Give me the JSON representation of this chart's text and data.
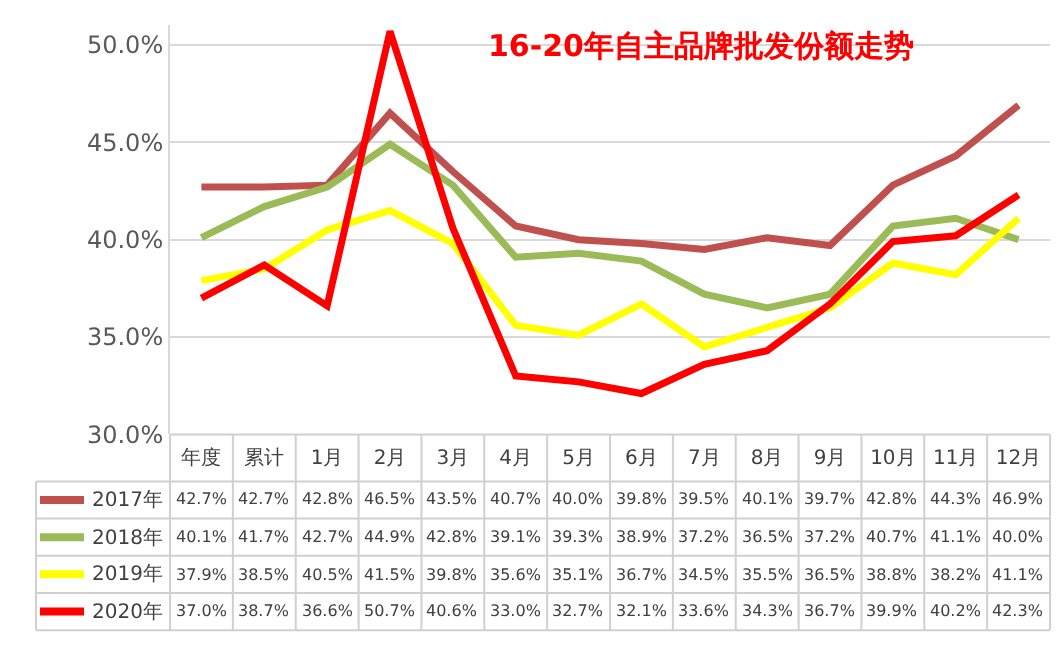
{
  "chart_data": {
    "type": "line",
    "title": "16-20年自主品牌批发份额走势",
    "categories": [
      "年度",
      "累计",
      "1月",
      "2月",
      "3月",
      "4月",
      "5月",
      "6月",
      "7月",
      "8月",
      "9月",
      "10月",
      "11月",
      "12月"
    ],
    "series": [
      {
        "name": "2017年",
        "color": "#c0504d",
        "values": [
          42.7,
          42.7,
          42.8,
          46.5,
          43.5,
          40.7,
          40.0,
          39.8,
          39.5,
          40.1,
          39.7,
          42.8,
          44.3,
          46.9
        ],
        "value_labels": [
          "42.7%",
          "42.7%",
          "42.8%",
          "46.5%",
          "43.5%",
          "40.7%",
          "40.0%",
          "39.8%",
          "39.5%",
          "40.1%",
          "39.7%",
          "42.8%",
          "44.3%",
          "46.9%"
        ]
      },
      {
        "name": "2018年",
        "color": "#9bbb59",
        "values": [
          40.1,
          41.7,
          42.7,
          44.9,
          42.8,
          39.1,
          39.3,
          38.9,
          37.2,
          36.5,
          37.2,
          40.7,
          41.1,
          40.0
        ],
        "value_labels": [
          "40.1%",
          "41.7%",
          "42.7%",
          "44.9%",
          "42.8%",
          "39.1%",
          "39.3%",
          "38.9%",
          "37.2%",
          "36.5%",
          "37.2%",
          "40.7%",
          "41.1%",
          "40.0%"
        ]
      },
      {
        "name": "2019年",
        "color": "#ffff00",
        "values": [
          37.9,
          38.5,
          40.5,
          41.5,
          39.8,
          35.6,
          35.1,
          36.7,
          34.5,
          35.5,
          36.5,
          38.8,
          38.2,
          41.1
        ],
        "value_labels": [
          "37.9%",
          "38.5%",
          "40.5%",
          "41.5%",
          "39.8%",
          "35.6%",
          "35.1%",
          "36.7%",
          "34.5%",
          "35.5%",
          "36.5%",
          "38.8%",
          "38.2%",
          "41.1%"
        ]
      },
      {
        "name": "2020年",
        "color": "#ff0000",
        "values": [
          37.0,
          38.7,
          36.6,
          50.7,
          40.6,
          33.0,
          32.7,
          32.1,
          33.6,
          34.3,
          36.7,
          39.9,
          40.2,
          42.3
        ],
        "value_labels": [
          "37.0%",
          "38.7%",
          "36.6%",
          "50.7%",
          "40.6%",
          "33.0%",
          "32.7%",
          "32.1%",
          "33.6%",
          "34.3%",
          "36.7%",
          "39.9%",
          "40.2%",
          "42.3%"
        ]
      }
    ],
    "ylim": [
      30,
      51
    ],
    "yticks": [
      {
        "value": 30,
        "label": "30.0%"
      },
      {
        "value": 35,
        "label": "35.0%"
      },
      {
        "value": 40,
        "label": "40.0%"
      },
      {
        "value": 45,
        "label": "45.0%"
      },
      {
        "value": 50,
        "label": "50.0%"
      }
    ],
    "grid": "y",
    "legend": "bottom",
    "marker": "none",
    "line_style": "solid"
  }
}
